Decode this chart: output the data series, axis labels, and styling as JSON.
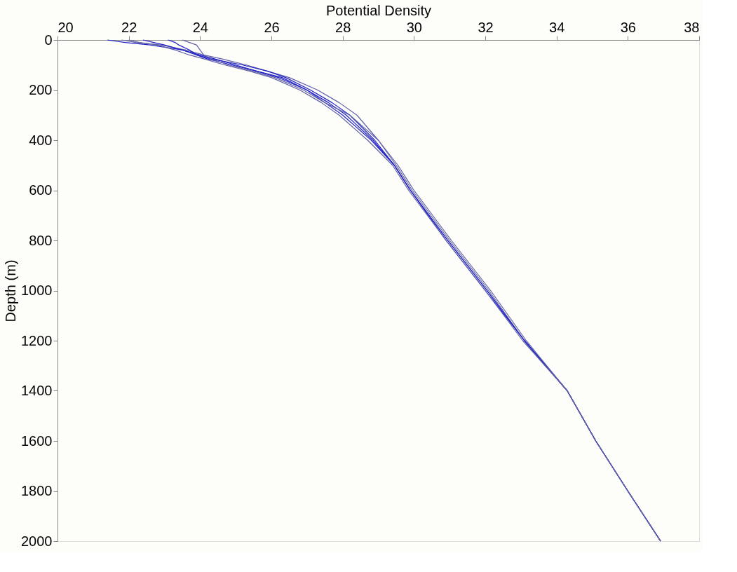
{
  "chart_data": {
    "type": "line",
    "xlabel": "Potential Density",
    "ylabel": "Depth (m)",
    "xlim": [
      20,
      38
    ],
    "xticks": [
      20,
      22,
      24,
      26,
      28,
      30,
      32,
      34,
      36,
      38
    ],
    "ylim": [
      2000,
      0
    ],
    "yticks": [
      0,
      200,
      400,
      600,
      800,
      1000,
      1200,
      1400,
      1600,
      1800,
      2000
    ],
    "grid": false,
    "marker": "none",
    "line_style": "solid",
    "series": [
      {
        "color": "#2020c8",
        "x": [
          21.4,
          21.9,
          22.6,
          23.5,
          24.0,
          24.4,
          25.0,
          25.6,
          26.2,
          27.0,
          27.5,
          28.0,
          28.8,
          29.45,
          29.9,
          30.95,
          32.05,
          33.1,
          34.3,
          35.1,
          36.0,
          36.92
        ],
        "values": [
          0,
          10,
          20,
          40,
          60,
          75,
          100,
          125,
          150,
          200,
          250,
          300,
          400,
          500,
          600,
          800,
          1000,
          1200,
          1400,
          1600,
          1800,
          2000
        ]
      },
      {
        "color": "#6060a8",
        "x": [
          21.8,
          22.2,
          22.9,
          23.6,
          24.1,
          24.6,
          25.3,
          25.9,
          26.5,
          27.3,
          27.9,
          28.4,
          29.0,
          29.5,
          29.95,
          31.0,
          32.1,
          33.1,
          34.3,
          35.1,
          36.0,
          36.92
        ],
        "values": [
          0,
          10,
          20,
          40,
          60,
          75,
          100,
          125,
          150,
          200,
          250,
          300,
          400,
          500,
          600,
          800,
          1000,
          1200,
          1400,
          1600,
          1800,
          2000
        ]
      },
      {
        "color": "#2020c8",
        "x": [
          22.4,
          22.7,
          23.0,
          23.5,
          23.9,
          24.3,
          25.2,
          25.9,
          26.4,
          27.1,
          27.7,
          28.2,
          28.9,
          29.45,
          29.9,
          30.9,
          32.0,
          33.1,
          34.3,
          35.1,
          36.0,
          36.92
        ],
        "values": [
          0,
          10,
          20,
          40,
          60,
          75,
          100,
          125,
          150,
          200,
          250,
          300,
          400,
          500,
          600,
          800,
          1000,
          1200,
          1400,
          1600,
          1800,
          2000
        ]
      },
      {
        "color": "#2020c8",
        "x": [
          23.1,
          23.3,
          23.4,
          23.7,
          23.9,
          24.2,
          24.9,
          25.6,
          26.3,
          27.0,
          27.6,
          28.1,
          28.85,
          29.45,
          29.9,
          30.95,
          32.05,
          33.1,
          34.3,
          35.1,
          36.0,
          36.92
        ],
        "values": [
          0,
          10,
          20,
          40,
          60,
          75,
          100,
          125,
          150,
          200,
          250,
          300,
          400,
          500,
          600,
          800,
          1000,
          1200,
          1400,
          1600,
          1800,
          2000
        ]
      },
      {
        "color": "#6060a8",
        "x": [
          23.5,
          23.7,
          23.9,
          24.0,
          24.1,
          24.3,
          24.8,
          25.5,
          26.1,
          26.9,
          27.5,
          28.2,
          29.0,
          29.55,
          30.0,
          31.05,
          32.15,
          33.15,
          34.3,
          35.1,
          36.0,
          36.92
        ],
        "values": [
          0,
          10,
          20,
          40,
          60,
          75,
          100,
          125,
          150,
          200,
          250,
          300,
          400,
          500,
          600,
          800,
          1000,
          1200,
          1400,
          1600,
          1800,
          2000
        ]
      },
      {
        "color": "#6060a8",
        "x": [
          22.0,
          22.3,
          22.8,
          23.3,
          23.7,
          24.1,
          24.7,
          25.4,
          26.0,
          26.8,
          27.4,
          27.9,
          28.7,
          29.4,
          29.85,
          30.9,
          32.0,
          33.05,
          34.3,
          35.1,
          36.0,
          36.92
        ],
        "values": [
          0,
          10,
          20,
          40,
          60,
          75,
          100,
          125,
          150,
          200,
          250,
          300,
          400,
          500,
          600,
          800,
          1000,
          1200,
          1400,
          1600,
          1800,
          2000
        ]
      }
    ]
  }
}
